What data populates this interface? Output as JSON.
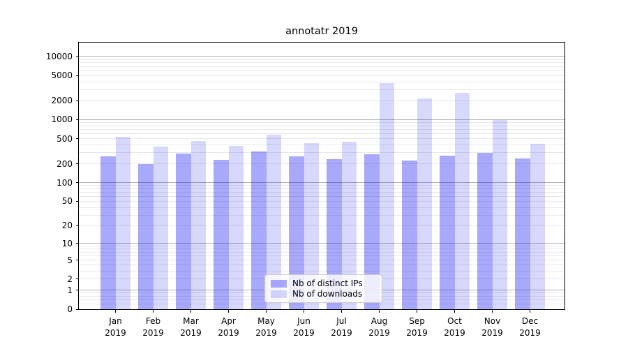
{
  "title": "annotatr 2019",
  "chart_data": {
    "type": "bar",
    "title": "annotatr 2019",
    "x_categories": [
      "Jan",
      "Feb",
      "Mar",
      "Apr",
      "May",
      "Jun",
      "Jul",
      "Aug",
      "Sep",
      "Oct",
      "Nov",
      "Dec"
    ],
    "x_year_line": "2019",
    "series": [
      {
        "name": "Nb of distinct IPs",
        "color": "rgba(10,10,245,0.35)",
        "values": [
          265,
          200,
          290,
          233,
          310,
          262,
          238,
          283,
          225,
          270,
          295,
          242
        ]
      },
      {
        "name": "Nb of downloads",
        "color": "rgba(10,10,245,0.16)",
        "values": [
          530,
          375,
          455,
          385,
          580,
          425,
          445,
          3850,
          2200,
          2650,
          975,
          410
        ]
      }
    ],
    "y_scale": "log10(1+v)",
    "y_tick_labels": [
      0,
      1,
      2,
      5,
      10,
      20,
      50,
      100,
      200,
      500,
      1000,
      2000,
      5000,
      10000
    ],
    "ylim": [
      0,
      16600
    ],
    "grid": {
      "major_values": [
        1,
        10,
        100,
        1000,
        10000
      ],
      "major_color": "#b2b2b2",
      "minor_color": "#e9e9e9"
    },
    "legend_position": "lower-center"
  },
  "colors": {
    "background": "#ffffff",
    "spine": "#000000",
    "text": "#000000"
  }
}
